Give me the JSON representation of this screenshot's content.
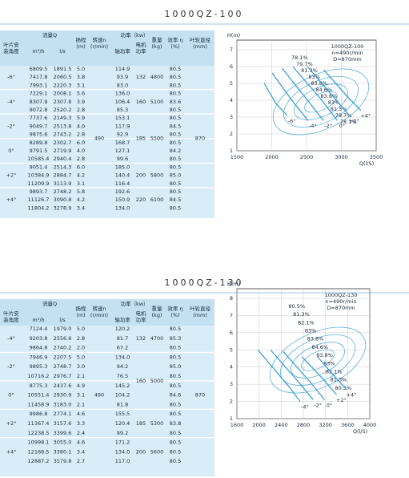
{
  "sections": [
    {
      "title": "1000QZ-100",
      "table": {
        "headers": {
          "angle": [
            "叶片安",
            "装角度"
          ],
          "flow": [
            "流量Q"
          ],
          "flow_m3h": [
            "m³/h"
          ],
          "flow_ls": [
            "l/s"
          ],
          "head": [
            "扬程",
            "(m)"
          ],
          "speed": [
            "转速n",
            "(r/min)"
          ],
          "power": [
            "功率（kw）"
          ],
          "shaft": [
            "轴功率"
          ],
          "motor": [
            "电机",
            "功率"
          ],
          "weight": [
            "重量",
            "(kg)"
          ],
          "eff": [
            "效率 η",
            "(%)"
          ],
          "dia": [
            "叶轮直径",
            "(mm)"
          ]
        },
        "speed": "490",
        "diameter": "870",
        "groups": [
          {
            "angle": "-6°",
            "motor_power": "132",
            "weight": "4800",
            "rows": [
              [
                "6809.5",
                "1891.5",
                "5.0",
                "114.9",
                "80.5"
              ],
              [
                "7417.8",
                "2060.5",
                "3.8",
                "93.9",
                "80.5"
              ],
              [
                "7993.1",
                "2220.3",
                "3.1",
                "83.0",
                "80.5"
              ]
            ]
          },
          {
            "angle": "-4°",
            "motor_power": "160",
            "weight": "5100",
            "rows": [
              [
                "7229.1",
                "2008.1",
                "5.6",
                "136.0",
                "80.5"
              ],
              [
                "8307.9",
                "2307.8",
                "3.9",
                "106.4",
                "83.6"
              ],
              [
                "9072.8",
                "2520.2",
                "2.8",
                "85.3",
                "80.5"
              ]
            ]
          },
          {
            "angle": "-2°",
            "motor_power": "185",
            "weight": "5500",
            "rows": [
              [
                "7737.6",
                "2149.3",
                "5.9",
                "153.1",
                "80.5"
              ],
              [
                "9049.7",
                "2513.8",
                "4.0",
                "117.9",
                "84.5"
              ],
              [
                "9875.6",
                "2743.2",
                "2.8",
                "92.9",
                "80.5"
              ]
            ]
          },
          {
            "angle": "0°",
            "rows": [
              [
                "8289.8",
                "2302.7",
                "6.0",
                "168.7",
                "80.5"
              ],
              [
                "9791.5",
                "2719.9",
                "4.0",
                "127.1",
                "84.2"
              ],
              [
                "10585.4",
                "2940.4",
                "2.8",
                "99.6",
                "80.5"
              ]
            ]
          },
          {
            "angle": "+2°",
            "motor_power": "200",
            "weight": "5800",
            "rows": [
              [
                "9051.4",
                "2514.3",
                "6.0",
                "185.0",
                "80.5"
              ],
              [
                "10384.9",
                "2884.7",
                "4.2",
                "140.4",
                "85.0"
              ],
              [
                "11209.9",
                "3113.9",
                "3.1",
                "116.4",
                "80.5"
              ]
            ]
          },
          {
            "angle": "+4°",
            "motor_power": "220",
            "weight": "6100",
            "rows": [
              [
                "9893.7",
                "2748.2",
                "5.8",
                "192.6",
                "80.5"
              ],
              [
                "11126.7",
                "3090.8",
                "4.2",
                "150.9",
                "84.5"
              ],
              [
                "11804.2",
                "3278.9",
                "3.4",
                "134.0",
                "80.5"
              ]
            ]
          }
        ]
      },
      "chart": {
        "y_label": "H(m)",
        "x_label": "Q(l/S)",
        "info": [
          "1000QZ-100",
          "n=490r/min",
          "D=870mm"
        ],
        "xlim": [
          1500,
          3500
        ],
        "xticks": [
          1500,
          2000,
          2500,
          3000,
          3500
        ],
        "ylim": [
          1,
          7
        ],
        "yticks": [
          1,
          2,
          3,
          4,
          5,
          6,
          7
        ],
        "efficiency_labels": [
          "78.1%",
          "79.7%",
          "81.3%",
          "83%",
          "83.8%",
          "84.6%",
          "83.8%",
          "83%",
          "81.3%",
          "79.7%",
          "78.1%"
        ]
      }
    },
    {
      "title": "1000QZ-130",
      "table": {
        "headers": {
          "angle": [
            "叶片安",
            "装角度"
          ],
          "flow": [
            "流量Q"
          ],
          "flow_m3h": [
            "m³/h"
          ],
          "flow_ls": [
            "l/s"
          ],
          "head": [
            "扬程",
            "(m)"
          ],
          "speed": [
            "转速n",
            "(r/min)"
          ],
          "power": [
            "功率（kw）"
          ],
          "shaft": [
            "轴功率"
          ],
          "motor": [
            "电机",
            "功率"
          ],
          "weight": [
            "重量",
            "(kg)"
          ],
          "eff": [
            "效率 η",
            "(%)"
          ],
          "dia": [
            "叶轮直径",
            "(mm)"
          ]
        },
        "speed": "490",
        "diameter": "870",
        "groups": [
          {
            "angle": "-4°",
            "motor_power": "132",
            "weight": "4700",
            "rows": [
              [
                "7124.4",
                "1979.0",
                "5.0",
                "120.2",
                "80.5"
              ],
              [
                "9203.8",
                "2556.6",
                "2.8",
                "81.7",
                "85.3"
              ],
              [
                "9864.8",
                "2740.2",
                "2.0",
                "67.2",
                "80.5"
              ]
            ]
          },
          {
            "angle": "-2°",
            "motor_power": "160",
            "weight": "5000",
            "rows": [
              [
                "7946.9",
                "2207.5",
                "5.0",
                "134.0",
                "80.5"
              ],
              [
                "9895.3",
                "2748.7",
                "3.0",
                "94.2",
                "85.0"
              ],
              [
                "10716.2",
                "2976.7",
                "2.1",
                "76.5",
                "80.5"
              ]
            ]
          },
          {
            "angle": "0°",
            "rows": [
              [
                "8775.3",
                "2437.6",
                "4.9",
                "145.2",
                "80.5"
              ],
              [
                "10551.4",
                "2930.9",
                "3.1",
                "104.2",
                "84.6"
              ],
              [
                "11458.9",
                "3183.0",
                "2.1",
                "81.8",
                "80.5"
              ]
            ]
          },
          {
            "angle": "+2°",
            "motor_power": "185",
            "weight": "5300",
            "rows": [
              [
                "9986.8",
                "2774.1",
                "4.6",
                "155.5",
                "80.5"
              ],
              [
                "11367.4",
                "3157.6",
                "3.3",
                "120.4",
                "83.8"
              ],
              [
                "12238.5",
                "3399.6",
                "2.4",
                "99.2",
                "80.5"
              ]
            ]
          },
          {
            "angle": "+4°",
            "motor_power": "200",
            "weight": "5600",
            "rows": [
              [
                "10998.1",
                "3055.0",
                "4.6",
                "171.2",
                "80.5"
              ],
              [
                "12168.5",
                "3380.1",
                "3.4",
                "134.0",
                "80.5"
              ],
              [
                "12887.2",
                "3579.8",
                "2.7",
                "117.0",
                "80.5"
              ]
            ]
          }
        ]
      },
      "chart": {
        "y_label": "H(m)",
        "x_label": "Q(l/S)",
        "info": [
          "1000QZ-130",
          "n=490r/min",
          "D=870mm"
        ],
        "xlim": [
          1600,
          4000
        ],
        "xticks": [
          1600,
          2000,
          2400,
          2800,
          3200,
          3600,
          4000
        ],
        "ylim": [
          1,
          8
        ],
        "yticks": [
          1,
          2,
          3,
          4,
          5,
          6,
          7,
          8
        ],
        "efficiency_labels": [
          "80.5%",
          "81.3%",
          "82.1%",
          "83%",
          "83.8%",
          "84.6%",
          "83.8%",
          "83%",
          "82.1%",
          "81.3%",
          "80.5%"
        ]
      }
    }
  ]
}
